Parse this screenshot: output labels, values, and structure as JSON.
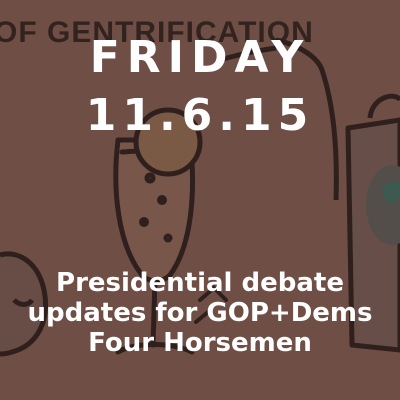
{
  "background": {
    "banner_text": "OF GENTRIFICATION",
    "color": "#7b5a50"
  },
  "overlay": {
    "day": "FRIDAY",
    "date": "11.6.15",
    "headline_lines": [
      "Presidential debate",
      "updates for GOP+Dems",
      "Four Horsemen"
    ]
  }
}
